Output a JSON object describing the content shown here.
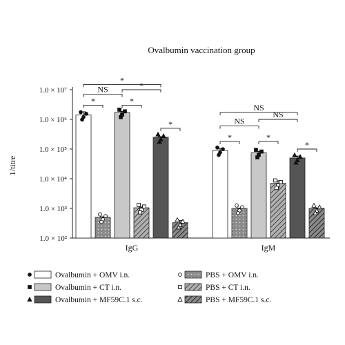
{
  "chart_data": {
    "type": "bar",
    "title": "Ovalbumin vaccination group",
    "ylabel": "1/titre",
    "yscale": "log",
    "ylim": [
      100,
      10000000
    ],
    "yticks": [
      {
        "value": 100,
        "label": "1.0 × 10²"
      },
      {
        "value": 1000,
        "label": "1.0 × 10³"
      },
      {
        "value": 10000,
        "label": "1.0 × 10⁴"
      },
      {
        "value": 100000,
        "label": "1.0 × 10⁵"
      },
      {
        "value": 1000000,
        "label": "1.0 × 10⁶"
      },
      {
        "value": 10000000,
        "label": "1.0 × 10⁷"
      }
    ],
    "categories": [
      "IgG",
      "IgM"
    ],
    "series": [
      {
        "name": "Ovalbumin + OMV i.n.",
        "fill": "#ffffff",
        "pattern": "none",
        "marker": "filled-circle",
        "values": [
          1400000,
          90000
        ],
        "err": [
          400000,
          12000
        ]
      },
      {
        "name": "PBS + OMV i.n.",
        "fill": "#8a8a8a",
        "pattern": "dots",
        "marker": "open-circle",
        "values": [
          500,
          1000
        ],
        "err": [
          20,
          30
        ]
      },
      {
        "name": "Ovalbumin + CT i.n.",
        "fill": "#c8c8c8",
        "pattern": "none",
        "marker": "filled-square",
        "values": [
          1700000,
          75000
        ],
        "err": [
          150000,
          8000
        ]
      },
      {
        "name": "PBS + CT i.n.",
        "fill": "#9a9a9a",
        "pattern": "hatch",
        "marker": "open-square",
        "values": [
          1050,
          7000
        ],
        "err": [
          60,
          1500
        ]
      },
      {
        "name": "Ovalbumin + MF59C.1 s.c.",
        "fill": "#555555",
        "pattern": "none",
        "marker": "filled-triangle",
        "values": [
          250000,
          50000
        ],
        "err": [
          10000,
          8000
        ]
      },
      {
        "name": "PBS + MF59C.1 s.c.",
        "fill": "#6a6a6a",
        "pattern": "hatch",
        "marker": "open-triangle",
        "values": [
          330,
          1000
        ],
        "err": [
          60,
          30
        ]
      }
    ],
    "significance": [
      {
        "group": 0,
        "from": 0,
        "to": 1,
        "label": "*",
        "y": 3000000
      },
      {
        "group": 0,
        "from": 2,
        "to": 3,
        "label": "*",
        "y": 3000000
      },
      {
        "group": 0,
        "from": 4,
        "to": 5,
        "label": "*",
        "y": 500000
      },
      {
        "group": 0,
        "from": 0,
        "to": 2,
        "label": "NS",
        "y": 7000000
      },
      {
        "group": 0,
        "from": 2,
        "to": 4,
        "label": "*",
        "y": 10000000
      },
      {
        "group": 0,
        "from": 0,
        "to": 4,
        "label": "*",
        "y": 15000000
      },
      {
        "group": 1,
        "from": 0,
        "to": 1,
        "label": "*",
        "y": 180000
      },
      {
        "group": 1,
        "from": 2,
        "to": 3,
        "label": "*",
        "y": 180000
      },
      {
        "group": 1,
        "from": 4,
        "to": 5,
        "label": "*",
        "y": 100000
      },
      {
        "group": 1,
        "from": 0,
        "to": 2,
        "label": "NS",
        "y": 600000
      },
      {
        "group": 1,
        "from": 2,
        "to": 4,
        "label": "NS",
        "y": 1000000
      },
      {
        "group": 1,
        "from": 0,
        "to": 4,
        "label": "NS",
        "y": 1700000
      }
    ],
    "legend_position": "bottom"
  }
}
